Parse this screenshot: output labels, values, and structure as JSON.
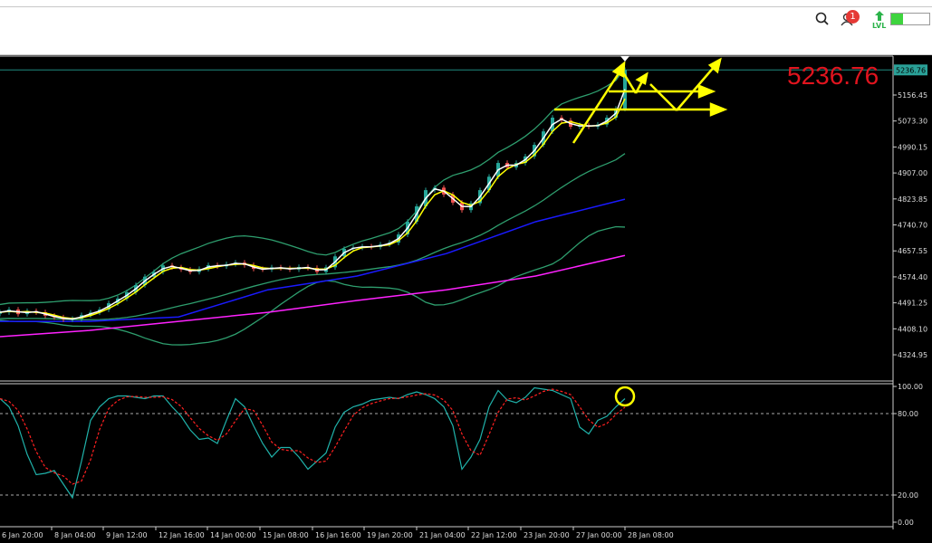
{
  "toolbar": {
    "search_icon": "search-icon",
    "notifications_icon": "user-notification-icon",
    "notification_count": "1",
    "level_label": "LVL",
    "level_progress": 0.3
  },
  "price_display": "5236.76",
  "colors": {
    "bull": "#26a69a",
    "bear": "#ef5350",
    "ma_fast": "#ffffff",
    "ma_slow": "#ffff00",
    "bollinger": "#2e9e6e",
    "ma_blue": "#1a1aff",
    "ma_magenta": "#ff22ff",
    "stoch_k": "#20b2aa",
    "stoch_d": "#ff2020",
    "annotation": "#ffff00"
  },
  "chart_data": [
    {
      "type": "candlestick",
      "ylim": [
        4290,
        5270
      ],
      "yticks": [
        "5236.76",
        "5156.45",
        "5073.30",
        "4990.15",
        "4907.00",
        "4823.85",
        "4740.70",
        "4657.55",
        "4574.40",
        "4491.25",
        "4408.10",
        "4324.95"
      ],
      "current_price": 5236.76,
      "xticks": [
        "6 Jan 20:00",
        "8 Jan 04:00",
        "9 Jan 12:00",
        "12 Jan 16:00",
        "14 Jan 00:00",
        "15 Jan 08:00",
        "16 Jan 16:00",
        "19 Jan 20:00",
        "21 Jan 04:00",
        "22 Jan 12:00",
        "23 Jan 20:00",
        "27 Jan 00:00",
        "28 Jan 08:00"
      ],
      "close": [
        4461,
        4470,
        4455,
        4465,
        4461,
        4450,
        4445,
        4438,
        4440,
        4452,
        4460,
        4470,
        4490,
        4505,
        4525,
        4548,
        4575,
        4590,
        4611,
        4605,
        4598,
        4590,
        4600,
        4612,
        4608,
        4615,
        4620,
        4612,
        4600,
        4598,
        4605,
        4602,
        4598,
        4606,
        4603,
        4590,
        4605,
        4640,
        4664,
        4668,
        4672,
        4670,
        4678,
        4684,
        4710,
        4751,
        4800,
        4852,
        4860,
        4838,
        4812,
        4788,
        4810,
        4852,
        4895,
        4939,
        4925,
        4939,
        4960,
        4997,
        5040,
        5084,
        5075,
        5055,
        5060,
        5055,
        5062,
        5084,
        5113,
        5236.76
      ],
      "ma_blue": [
        4432,
        4432,
        4446,
        4533,
        4577,
        4649,
        4751,
        4823
      ],
      "ma_magenta": [
        4383,
        4403,
        4432,
        4461,
        4499,
        4533,
        4577,
        4643
      ]
    },
    {
      "type": "line",
      "ylim": [
        0,
        100
      ],
      "yticks": [
        "100.00",
        "80.00",
        "20.00",
        "0.00"
      ],
      "levels": [
        80,
        20
      ],
      "stoch_k": [
        91,
        85,
        71,
        50,
        35,
        36,
        38,
        28,
        18,
        45,
        75,
        85,
        91,
        93,
        93,
        92,
        91,
        93,
        93,
        85,
        78,
        68,
        61,
        62,
        58,
        75,
        91,
        85,
        71,
        58,
        48,
        55,
        55,
        48,
        39,
        45,
        51,
        70,
        81,
        85,
        87,
        90,
        91,
        92,
        91,
        94,
        96,
        94,
        91,
        85,
        71,
        39,
        48,
        61,
        85,
        97,
        90,
        88,
        92,
        99,
        98,
        97,
        94,
        91,
        70,
        65,
        75,
        78,
        85,
        91
      ]
    }
  ]
}
